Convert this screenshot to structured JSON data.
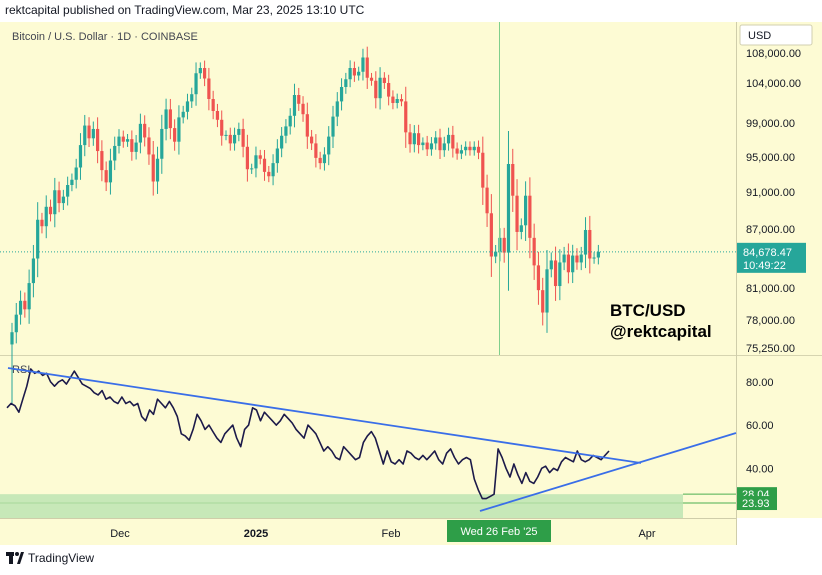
{
  "header": {
    "attribution": "rektcapital published on TradingView.com, Mar 23, 2025 13:10 UTC"
  },
  "footer": {
    "brand": "TradingView"
  },
  "chart_data": [
    {
      "type": "candlestick",
      "title": "Bitcoin / U.S. Dollar · 1D · COINBASE",
      "currency_label": "USD",
      "y_ticks": [
        "108,000.00",
        "104,000.00",
        "99,000.00",
        "95,000.00",
        "91,000.00",
        "87,000.00",
        "81,000.00",
        "78,000.00",
        "75,250.00"
      ],
      "ylim": [
        75250,
        110500
      ],
      "last_price": {
        "value": "84,678.47",
        "countdown": "10:49:22"
      },
      "annotation": [
        "BTC/USD",
        "@rektcapital"
      ],
      "x_ticks": [
        "Dec",
        "2025",
        "Feb",
        "Apr"
      ],
      "highlighted_date": "Wed 26 Feb '25",
      "colors": {
        "up": "#26a69a",
        "down": "#ef5350",
        "background": "#fdfbd4",
        "annotation_line": "#7fcf8c"
      },
      "candles": [
        [
          75600,
          76800
        ],
        [
          76800,
          78500
        ],
        [
          78500,
          79800
        ],
        [
          79800,
          79000
        ],
        [
          79000,
          81500
        ],
        [
          81500,
          84000
        ],
        [
          84000,
          88000
        ],
        [
          88000,
          87300
        ],
        [
          87300,
          89400
        ],
        [
          89400,
          88600
        ],
        [
          88600,
          91200
        ],
        [
          91200,
          89800
        ],
        [
          89800,
          90500
        ],
        [
          90500,
          91800
        ],
        [
          91800,
          92400
        ],
        [
          92400,
          93800
        ],
        [
          93800,
          96400
        ],
        [
          96400,
          98700
        ],
        [
          98700,
          97200
        ],
        [
          97200,
          98300
        ],
        [
          98300,
          95700
        ],
        [
          95700,
          93500
        ],
        [
          93500,
          92100
        ],
        [
          92100,
          94600
        ],
        [
          94600,
          96300
        ],
        [
          96300,
          97400
        ],
        [
          97400,
          96800
        ],
        [
          96800,
          97100
        ],
        [
          97100,
          95600
        ],
        [
          95600,
          96700
        ],
        [
          96700,
          98900
        ],
        [
          98900,
          97300
        ],
        [
          97300,
          95300
        ],
        [
          95300,
          92200
        ],
        [
          92200,
          94800
        ],
        [
          94800,
          98300
        ],
        [
          98300,
          100700
        ],
        [
          100700,
          98400
        ],
        [
          98400,
          96800
        ],
        [
          96800,
          99700
        ],
        [
          99700,
          100400
        ],
        [
          100400,
          101700
        ],
        [
          101700,
          102600
        ],
        [
          102600,
          105300
        ],
        [
          105300,
          106000
        ],
        [
          106000,
          104600
        ],
        [
          104600,
          102000
        ],
        [
          102000,
          100500
        ],
        [
          100500,
          99400
        ],
        [
          99400,
          97500
        ],
        [
          97500,
          97600
        ],
        [
          97600,
          96600
        ],
        [
          96600,
          97600
        ],
        [
          97600,
          98300
        ],
        [
          98300,
          96200
        ],
        [
          96200,
          93600
        ],
        [
          93600,
          93700
        ],
        [
          93700,
          95200
        ],
        [
          95200,
          94800
        ],
        [
          94800,
          93300
        ],
        [
          93300,
          92800
        ],
        [
          92800,
          94300
        ],
        [
          94300,
          96000
        ],
        [
          96000,
          97500
        ],
        [
          97500,
          98600
        ],
        [
          98600,
          99900
        ],
        [
          99900,
          102500
        ],
        [
          102500,
          101400
        ],
        [
          101400,
          100100
        ],
        [
          100100,
          97400
        ],
        [
          97400,
          96600
        ],
        [
          96600,
          94900
        ],
        [
          94900,
          94300
        ],
        [
          94300,
          95300
        ],
        [
          95300,
          97400
        ],
        [
          97400,
          99800
        ],
        [
          99800,
          101700
        ],
        [
          101700,
          103500
        ],
        [
          103500,
          104500
        ],
        [
          104500,
          106000
        ],
        [
          106000,
          105000
        ],
        [
          105000,
          105500
        ],
        [
          105500,
          107400
        ],
        [
          107400,
          104700
        ],
        [
          104700,
          104300
        ],
        [
          104300,
          102100
        ],
        [
          102100,
          104700
        ],
        [
          104700,
          104000
        ],
        [
          104000,
          102300
        ],
        [
          102300,
          101500
        ],
        [
          101500,
          102000
        ],
        [
          102000,
          101700
        ],
        [
          101700,
          97900
        ],
        [
          97900,
          96500
        ],
        [
          96500,
          97800
        ],
        [
          97800,
          96400
        ],
        [
          96400,
          96700
        ],
        [
          96700,
          95900
        ],
        [
          95900,
          96600
        ],
        [
          96600,
          97300
        ],
        [
          97300,
          95800
        ],
        [
          95800,
          96600
        ],
        [
          96600,
          97600
        ],
        [
          97600,
          96000
        ],
        [
          96000,
          95400
        ],
        [
          95400,
          95800
        ],
        [
          95800,
          96200
        ],
        [
          96200,
          95800
        ],
        [
          95800,
          96200
        ],
        [
          96200,
          95500
        ],
        [
          95500,
          91500
        ],
        [
          91500,
          88700
        ],
        [
          88700,
          84200
        ],
        [
          84200,
          84700
        ],
        [
          84700,
          86100
        ],
        [
          86100,
          84600
        ],
        [
          84600,
          94200
        ],
        [
          94200,
          90600
        ],
        [
          90600,
          86700
        ],
        [
          86700,
          87400
        ],
        [
          87400,
          90600
        ],
        [
          90600,
          86100
        ],
        [
          86100,
          83300
        ],
        [
          83300,
          80800
        ],
        [
          80800,
          78700
        ],
        [
          78700,
          82900
        ],
        [
          82900,
          83800
        ],
        [
          83800,
          81200
        ],
        [
          81200,
          83600
        ],
        [
          83600,
          84400
        ],
        [
          84400,
          82600
        ],
        [
          82600,
          84300
        ],
        [
          84300,
          83600
        ],
        [
          83600,
          84400
        ],
        [
          84400,
          86900
        ],
        [
          86900,
          84000
        ],
        [
          84000,
          84100
        ],
        [
          84100,
          84678
        ]
      ]
    },
    {
      "type": "line",
      "title": "RSI",
      "y_ticks": [
        "80.00",
        "60.00",
        "40.00"
      ],
      "ylim": [
        17,
        92
      ],
      "levels": [
        {
          "value": "28.04"
        },
        {
          "value": "23.93"
        }
      ],
      "values": [
        68,
        70,
        69,
        66,
        72,
        78,
        86,
        84,
        85,
        83,
        84,
        80,
        78,
        80,
        81,
        79,
        82,
        85,
        82,
        79,
        78,
        77,
        75,
        74,
        76,
        72,
        73,
        71,
        70,
        73,
        70,
        71,
        69,
        70,
        64,
        62,
        67,
        65,
        72,
        70,
        68,
        71,
        68,
        64,
        56,
        55,
        53,
        58,
        65,
        62,
        58,
        60,
        57,
        54,
        52,
        56,
        58,
        60,
        54,
        50,
        58,
        60,
        68,
        67,
        62,
        66,
        64,
        62,
        60,
        62,
        65,
        63,
        61,
        58,
        56,
        54,
        60,
        58,
        56,
        52,
        48,
        50,
        48,
        45,
        44,
        50,
        48,
        46,
        44,
        45,
        52,
        55,
        57,
        54,
        48,
        42,
        48,
        43,
        42,
        44,
        42,
        48,
        47,
        45,
        44,
        46,
        44,
        46,
        48,
        44,
        42,
        47,
        49,
        45,
        42,
        44,
        45,
        44,
        35,
        30,
        26,
        26,
        27,
        28,
        49,
        45,
        40,
        36,
        42,
        37,
        33,
        38,
        34,
        33,
        36,
        40,
        41,
        38,
        40,
        39,
        43,
        45,
        44,
        43,
        48,
        44,
        43,
        44,
        46,
        45,
        44,
        46,
        48
      ]
    }
  ]
}
